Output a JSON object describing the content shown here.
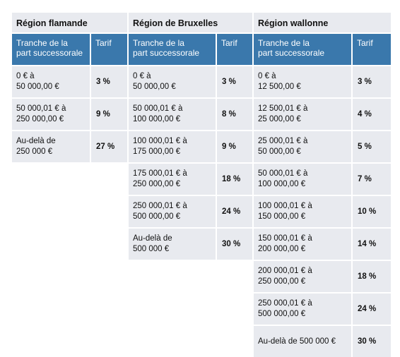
{
  "regions": [
    {
      "title": "Région flamande",
      "col_tranche": "Tranche de la\npart successorale",
      "col_tarif": "Tarif",
      "rows": [
        {
          "tranche": "0 € à\n50 000,00 €",
          "tarif": "3 %"
        },
        {
          "tranche": "50 000,01 € à\n250 000,00 €",
          "tarif": "9 %"
        },
        {
          "tranche": "Au-delà de\n250 000 €",
          "tarif": "27 %"
        }
      ]
    },
    {
      "title": "Région de Bruxelles",
      "col_tranche": "Tranche de la\npart successorale",
      "col_tarif": "Tarif",
      "rows": [
        {
          "tranche": "0 € à\n50 000,00 €",
          "tarif": "3 %"
        },
        {
          "tranche": "50 000,01 € à\n100 000,00 €",
          "tarif": "8 %"
        },
        {
          "tranche": "100 000,01 € à\n175 000,00 €",
          "tarif": "9 %"
        },
        {
          "tranche": "175 000,01 € à\n250 000,00 €",
          "tarif": "18 %"
        },
        {
          "tranche": "250 000,01 € à\n500 000,00 €",
          "tarif": "24 %"
        },
        {
          "tranche": "Au-delà de\n500 000 €",
          "tarif": "30 %"
        }
      ]
    },
    {
      "title": "Région wallonne",
      "col_tranche": "Tranche de la\npart successorale",
      "col_tarif": "Tarif",
      "rows": [
        {
          "tranche": "0 € à\n12 500,00 €",
          "tarif": "3 %"
        },
        {
          "tranche": "12 500,01 € à\n25 000,00 €",
          "tarif": "4 %"
        },
        {
          "tranche": "25 000,01 € à\n50 000,00 €",
          "tarif": "5 %"
        },
        {
          "tranche": "50 000,01 € à\n100 000,00 €",
          "tarif": "7 %"
        },
        {
          "tranche": "100 000,01 € à\n150 000,00 €",
          "tarif": "10 %"
        },
        {
          "tranche": "150 000,01 € à\n200 000,00 €",
          "tarif": "14 %"
        },
        {
          "tranche": "200 000,01 € à\n250 000,00 €",
          "tarif": "18 %"
        },
        {
          "tranche": "250 000,01 € à\n500 000,00 €",
          "tarif": "24 %"
        },
        {
          "tranche": "Au-delà de 500 000 €",
          "tarif": "30 %"
        }
      ]
    }
  ],
  "colors": {
    "header_bg": "#3a78ac",
    "cell_bg": "#e8eaef"
  }
}
